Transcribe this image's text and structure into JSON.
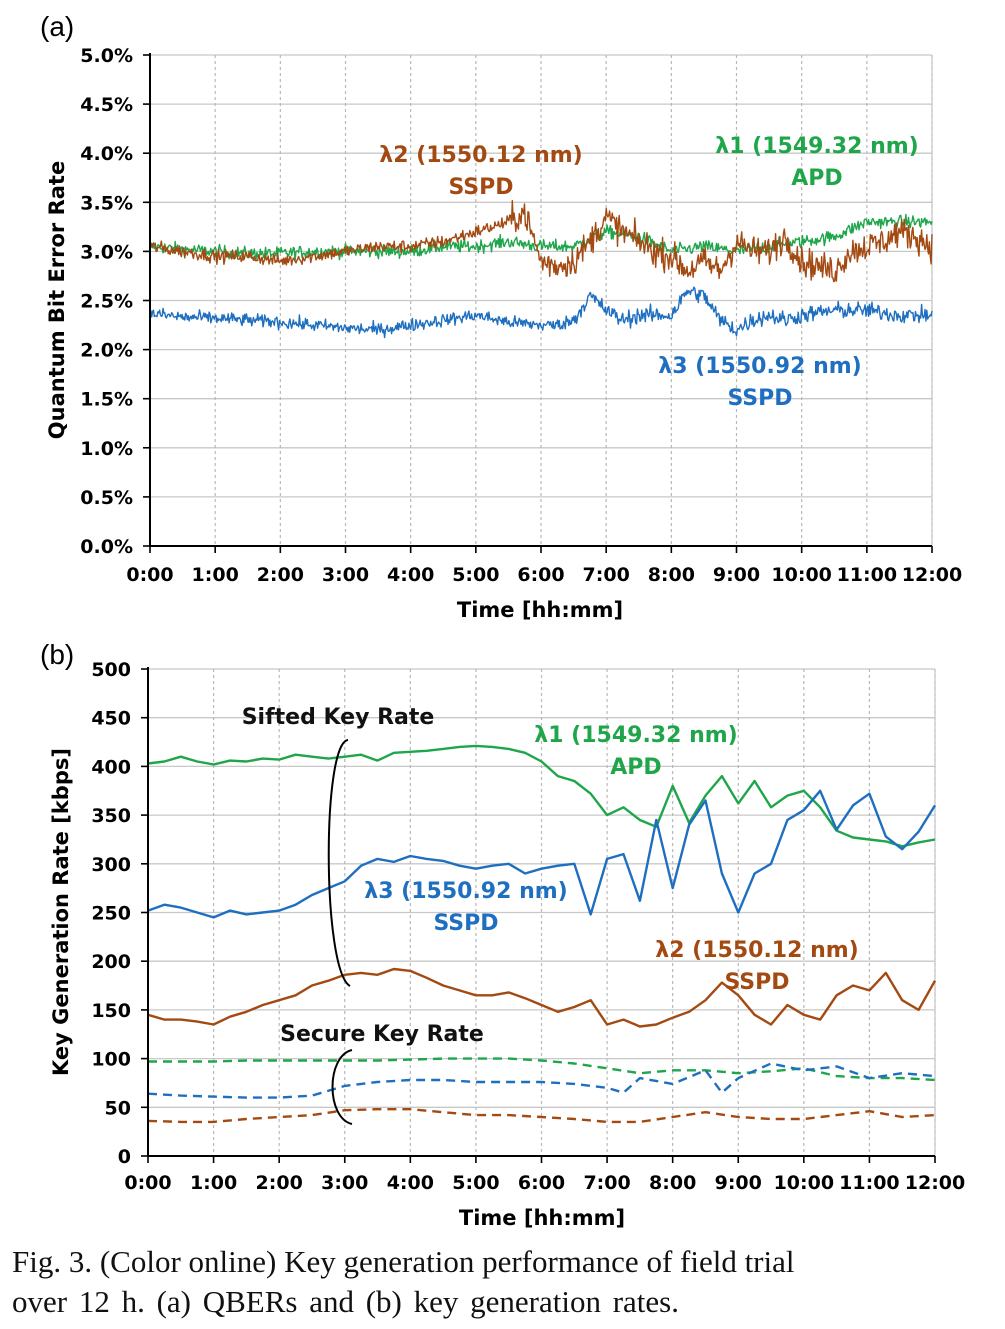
{
  "colors": {
    "green": "#1fa54a",
    "brown": "#a34a12",
    "blue": "#1f6fc0",
    "grid": "#c8c8c8",
    "axis": "#000000"
  },
  "panel_a": {
    "label": "(a)",
    "ylabel": "Quantum Bit Error Rate",
    "xlabel": "Time [hh:mm]",
    "annotations": {
      "l1": "λ1 (1549.32 nm)",
      "l1b": "APD",
      "l2": "λ2 (1550.12 nm)",
      "l2b": "SSPD",
      "l3": "λ3 (1550.92 nm)",
      "l3b": "SSPD"
    }
  },
  "panel_b": {
    "label": "(b)",
    "ylabel": "Key Generation Rate [kbps]",
    "xlabel": "Time [hh:mm]",
    "annotations": {
      "sifted": "Sifted Key Rate",
      "secure": "Secure Key Rate",
      "l1": "λ1 (1549.32 nm)",
      "l1b": "APD",
      "l2": "λ2 (1550.12 nm)",
      "l2b": "SSPD",
      "l3": "λ3 (1550.92 nm)",
      "l3b": "SSPD"
    }
  },
  "caption": {
    "line1": "Fig. 3.    (Color online) Key generation performance of field trial",
    "line2": "over 12 h. (a) QBERs and (b) key generation rates."
  },
  "chart_data": [
    {
      "type": "line",
      "xlabel": "Time [hh:mm]",
      "ylabel": "Quantum Bit Error Rate",
      "x_ticks": [
        "0:00",
        "1:00",
        "2:00",
        "3:00",
        "4:00",
        "5:00",
        "6:00",
        "7:00",
        "8:00",
        "9:00",
        "10:00",
        "11:00",
        "12:00"
      ],
      "y_ticks": [
        "0.0%",
        "0.5%",
        "1.0%",
        "1.5%",
        "2.0%",
        "2.5%",
        "3.0%",
        "3.5%",
        "4.0%",
        "4.5%",
        "5.0%"
      ],
      "xlim": [
        0,
        12
      ],
      "ylim": [
        0,
        5.0
      ],
      "grid": "vertical dashed",
      "series": [
        {
          "name": "λ1 (1549.32 nm) APD",
          "color": "#1fa54a",
          "x": [
            0,
            0.5,
            1,
            1.5,
            2,
            2.5,
            3,
            3.5,
            4,
            4.5,
            5,
            5.5,
            6,
            6.5,
            7,
            7.5,
            8,
            8.5,
            9,
            9.5,
            10,
            10.5,
            11,
            11.5,
            12
          ],
          "y": [
            3.05,
            3.02,
            3.0,
            2.98,
            2.98,
            3.0,
            3.0,
            3.0,
            3.0,
            3.05,
            3.05,
            3.1,
            3.05,
            3.05,
            3.2,
            3.15,
            3.0,
            3.05,
            3.0,
            3.05,
            3.1,
            3.15,
            3.3,
            3.3,
            3.3
          ]
        },
        {
          "name": "λ2 (1550.12 nm) SSPD",
          "color": "#a34a12",
          "x": [
            0,
            0.5,
            1,
            1.5,
            2,
            2.5,
            3,
            3.5,
            4,
            4.5,
            5,
            5.25,
            5.5,
            5.75,
            6,
            6.25,
            6.5,
            6.75,
            7,
            7.25,
            7.5,
            7.75,
            8,
            8.25,
            8.5,
            8.75,
            9,
            9.25,
            9.5,
            9.75,
            10,
            10.25,
            10.5,
            10.75,
            11,
            11.25,
            11.5,
            11.75,
            12
          ],
          "y": [
            3.05,
            3.0,
            2.95,
            2.95,
            2.9,
            2.95,
            3.0,
            3.05,
            3.05,
            3.1,
            3.2,
            3.25,
            3.3,
            3.4,
            2.9,
            2.85,
            2.9,
            3.1,
            3.35,
            3.2,
            3.1,
            3.0,
            2.95,
            2.8,
            2.9,
            2.8,
            3.1,
            3.0,
            3.0,
            3.15,
            2.9,
            2.85,
            2.8,
            3.0,
            3.05,
            3.1,
            3.2,
            3.15,
            3.05
          ]
        },
        {
          "name": "λ3 (1550.92 nm) SSPD",
          "color": "#1f6fc0",
          "x": [
            0,
            0.5,
            1,
            1.5,
            2,
            2.5,
            3,
            3.5,
            4,
            4.5,
            5,
            5.5,
            6,
            6.25,
            6.5,
            6.75,
            7,
            7.25,
            7.5,
            7.75,
            8,
            8.25,
            8.5,
            8.75,
            9,
            9.25,
            9.5,
            9.75,
            10,
            10.5,
            11,
            11.5,
            12
          ],
          "y": [
            2.37,
            2.33,
            2.32,
            2.3,
            2.28,
            2.25,
            2.22,
            2.2,
            2.25,
            2.3,
            2.35,
            2.28,
            2.25,
            2.25,
            2.3,
            2.55,
            2.4,
            2.3,
            2.35,
            2.35,
            2.35,
            2.6,
            2.55,
            2.3,
            2.2,
            2.3,
            2.35,
            2.3,
            2.35,
            2.4,
            2.4,
            2.35,
            2.35
          ]
        }
      ]
    },
    {
      "type": "line",
      "xlabel": "Time [hh:mm]",
      "ylabel": "Key Generation Rate [kbps]",
      "x_ticks": [
        "0:00",
        "1:00",
        "2:00",
        "3:00",
        "4:00",
        "5:00",
        "6:00",
        "7:00",
        "8:00",
        "9:00",
        "10:00",
        "11:00",
        "12:00"
      ],
      "y_ticks": [
        "0",
        "50",
        "100",
        "150",
        "200",
        "250",
        "300",
        "350",
        "400",
        "450",
        "500"
      ],
      "xlim": [
        0,
        12
      ],
      "ylim": [
        0,
        500
      ],
      "grid": "vertical dashed",
      "series": [
        {
          "name": "λ1 (1549.32 nm) APD",
          "group": "sifted",
          "color": "#1fa54a",
          "dash": false,
          "x": [
            0,
            0.25,
            0.5,
            0.75,
            1,
            1.25,
            1.5,
            1.75,
            2,
            2.25,
            2.5,
            2.75,
            3,
            3.25,
            3.5,
            3.75,
            4,
            4.25,
            4.5,
            4.75,
            5,
            5.25,
            5.5,
            5.75,
            6,
            6.25,
            6.5,
            6.75,
            7,
            7.25,
            7.5,
            7.75,
            8,
            8.25,
            8.5,
            8.75,
            9,
            9.25,
            9.5,
            9.75,
            10,
            10.25,
            10.5,
            10.75,
            11,
            11.25,
            11.5,
            11.75,
            12
          ],
          "y": [
            403,
            405,
            410,
            405,
            402,
            406,
            405,
            408,
            407,
            412,
            410,
            408,
            410,
            412,
            406,
            414,
            415,
            416,
            418,
            420,
            421,
            420,
            418,
            414,
            405,
            390,
            385,
            372,
            350,
            358,
            345,
            338,
            380,
            342,
            370,
            390,
            362,
            385,
            358,
            370,
            375,
            358,
            334,
            327,
            325,
            323,
            318,
            322,
            325
          ]
        },
        {
          "name": "λ3 (1550.92 nm) SSPD",
          "group": "sifted",
          "color": "#1f6fc0",
          "dash": false,
          "x": [
            0,
            0.25,
            0.5,
            0.75,
            1,
            1.25,
            1.5,
            1.75,
            2,
            2.25,
            2.5,
            2.75,
            3,
            3.25,
            3.5,
            3.75,
            4,
            4.25,
            4.5,
            4.75,
            5,
            5.25,
            5.5,
            5.75,
            6,
            6.25,
            6.5,
            6.75,
            7,
            7.25,
            7.5,
            7.75,
            8,
            8.25,
            8.5,
            8.75,
            9,
            9.25,
            9.5,
            9.75,
            10,
            10.25,
            10.5,
            10.75,
            11,
            11.25,
            11.5,
            11.75,
            12
          ],
          "y": [
            252,
            258,
            255,
            250,
            245,
            252,
            248,
            250,
            252,
            258,
            268,
            275,
            282,
            298,
            305,
            302,
            308,
            305,
            303,
            298,
            295,
            298,
            300,
            290,
            295,
            298,
            300,
            248,
            305,
            310,
            262,
            345,
            275,
            340,
            365,
            290,
            250,
            290,
            300,
            345,
            355,
            375,
            335,
            360,
            372,
            328,
            315,
            333,
            360
          ]
        },
        {
          "name": "λ2 (1550.12 nm) SSPD",
          "group": "sifted",
          "color": "#a34a12",
          "dash": false,
          "x": [
            0,
            0.25,
            0.5,
            0.75,
            1,
            1.25,
            1.5,
            1.75,
            2,
            2.25,
            2.5,
            2.75,
            3,
            3.25,
            3.5,
            3.75,
            4,
            4.25,
            4.5,
            4.75,
            5,
            5.25,
            5.5,
            5.75,
            6,
            6.25,
            6.5,
            6.75,
            7,
            7.25,
            7.5,
            7.75,
            8,
            8.25,
            8.5,
            8.75,
            9,
            9.25,
            9.5,
            9.75,
            10,
            10.25,
            10.5,
            10.75,
            11,
            11.25,
            11.5,
            11.75,
            12
          ],
          "y": [
            145,
            140,
            140,
            138,
            135,
            143,
            148,
            155,
            160,
            165,
            175,
            180,
            186,
            188,
            186,
            192,
            190,
            183,
            175,
            170,
            165,
            165,
            168,
            162,
            155,
            148,
            153,
            160,
            135,
            140,
            133,
            135,
            142,
            148,
            160,
            178,
            165,
            145,
            135,
            155,
            145,
            140,
            165,
            175,
            170,
            188,
            160,
            150,
            180
          ]
        },
        {
          "name": "λ1 (1549.32 nm) APD",
          "group": "secure",
          "color": "#1fa54a",
          "dash": true,
          "x": [
            0,
            0.5,
            1,
            1.5,
            2,
            2.5,
            3,
            3.5,
            4,
            4.5,
            5,
            5.5,
            6,
            6.5,
            7,
            7.5,
            8,
            8.5,
            9,
            9.5,
            10,
            10.5,
            11,
            11.5,
            12
          ],
          "y": [
            97,
            97,
            97,
            98,
            98,
            98,
            98,
            98,
            99,
            100,
            100,
            100,
            98,
            95,
            90,
            85,
            88,
            88,
            85,
            87,
            90,
            82,
            80,
            80,
            78
          ]
        },
        {
          "name": "λ3 (1550.92 nm) SSPD",
          "group": "secure",
          "color": "#1f6fc0",
          "dash": true,
          "x": [
            0,
            0.5,
            1,
            1.5,
            2,
            2.5,
            3,
            3.5,
            4,
            4.5,
            5,
            5.5,
            6,
            6.5,
            7,
            7.25,
            7.5,
            8,
            8.5,
            8.75,
            9,
            9.5,
            10,
            10.5,
            11,
            11.5,
            12
          ],
          "y": [
            64,
            62,
            61,
            60,
            60,
            62,
            72,
            76,
            78,
            78,
            76,
            76,
            76,
            74,
            70,
            65,
            80,
            74,
            88,
            65,
            80,
            95,
            88,
            92,
            80,
            85,
            82
          ]
        },
        {
          "name": "λ2 (1550.12 nm) SSPD",
          "group": "secure",
          "color": "#a34a12",
          "dash": true,
          "x": [
            0,
            0.5,
            1,
            1.5,
            2,
            2.5,
            3,
            3.5,
            4,
            4.5,
            5,
            5.5,
            6,
            6.5,
            7,
            7.5,
            8,
            8.5,
            9,
            9.5,
            10,
            10.5,
            11,
            11.5,
            12
          ],
          "y": [
            36,
            35,
            35,
            38,
            40,
            42,
            47,
            48,
            48,
            45,
            42,
            42,
            40,
            38,
            35,
            35,
            40,
            45,
            40,
            38,
            38,
            42,
            46,
            40,
            42
          ]
        }
      ]
    }
  ]
}
